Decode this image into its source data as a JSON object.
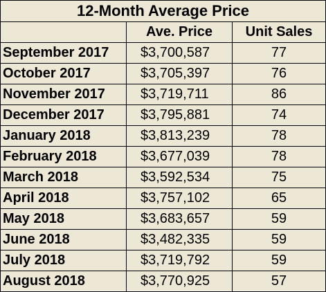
{
  "title": "12-Month Average Price",
  "columns": [
    "",
    "Ave. Price",
    "Unit Sales"
  ],
  "rows": [
    {
      "month": "September 2017",
      "price": "$3,700,587",
      "sales": "77"
    },
    {
      "month": "October 2017",
      "price": "$3,705,397",
      "sales": "76"
    },
    {
      "month": "November 2017",
      "price": "$3,719,711",
      "sales": "86"
    },
    {
      "month": "December 2017",
      "price": "$3,795,881",
      "sales": "74"
    },
    {
      "month": "January 2018",
      "price": "$3,813,239",
      "sales": "78"
    },
    {
      "month": "February 2018",
      "price": "$3,677,039",
      "sales": "78"
    },
    {
      "month": "March 2018",
      "price": "$3,592,534",
      "sales": "75"
    },
    {
      "month": "April 2018",
      "price": "$3,757,102",
      "sales": "65"
    },
    {
      "month": "May 2018",
      "price": "$3,683,657",
      "sales": "59"
    },
    {
      "month": "June 2018",
      "price": "$3,482,335",
      "sales": "59"
    },
    {
      "month": "July 2018",
      "price": "$3,719,792",
      "sales": "59"
    },
    {
      "month": "August 2018",
      "price": "$3,770,925",
      "sales": "57"
    }
  ],
  "colors": {
    "background": "#ede7d6",
    "border": "#000000",
    "text": "#000000"
  }
}
